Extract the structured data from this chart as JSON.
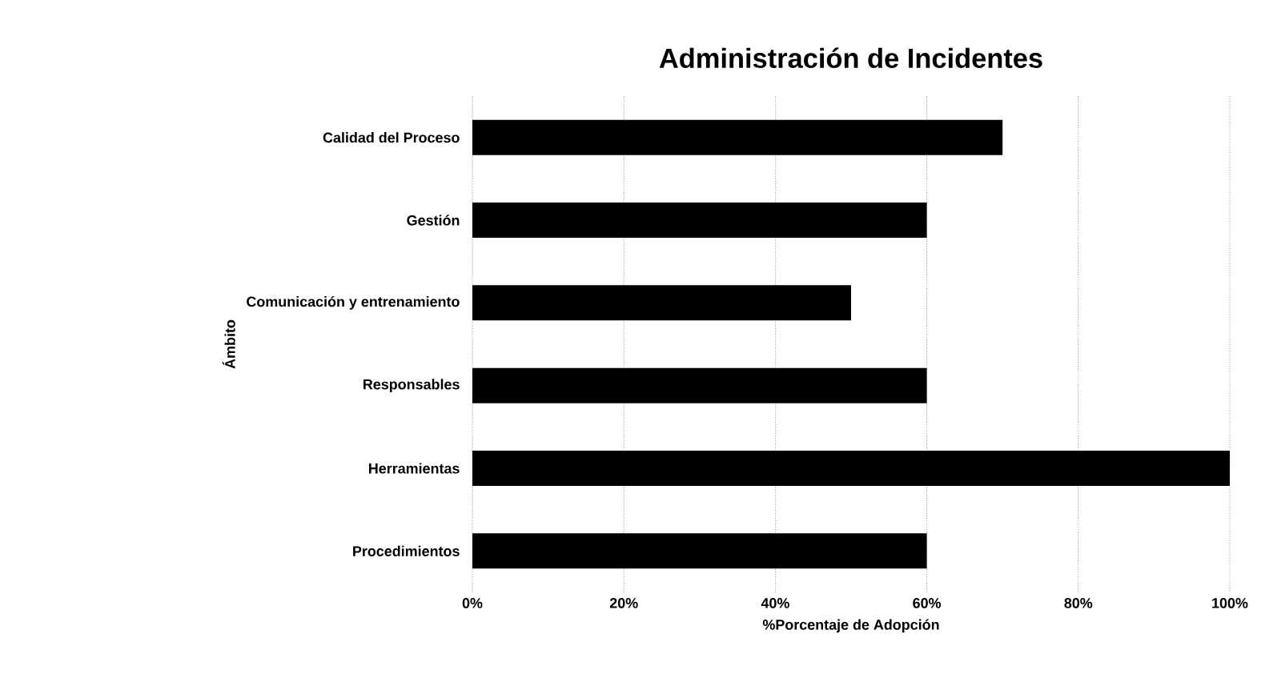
{
  "chart_data": {
    "type": "bar",
    "orientation": "horizontal",
    "title": "Administración de Incidentes",
    "xlabel": "%Porcentaje de Adopción",
    "ylabel": "Ámbito",
    "categories": [
      "Calidad del Proceso",
      "Gestión",
      "Comunicación y entrenamiento",
      "Responsables",
      "Herramientas",
      "Procedimientos"
    ],
    "values": [
      70,
      60,
      50,
      60,
      100,
      60
    ],
    "color": "#000000",
    "xlim": [
      0,
      100
    ],
    "xticks": [
      {
        "value": 0,
        "label": "0%"
      },
      {
        "value": 20,
        "label": "20%"
      },
      {
        "value": 40,
        "label": "40%"
      },
      {
        "value": 60,
        "label": "60%"
      },
      {
        "value": 80,
        "label": "80%"
      },
      {
        "value": 100,
        "label": "100%"
      }
    ],
    "grid": "x"
  }
}
